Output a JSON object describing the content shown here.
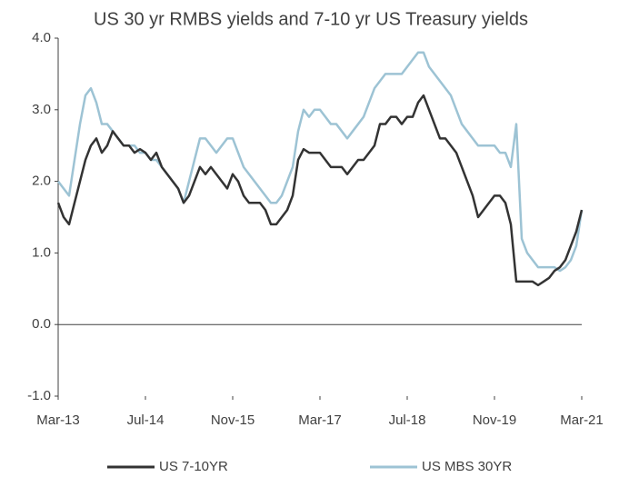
{
  "chart_data": {
    "type": "line",
    "title": "US 30 yr RMBS yields and 7-10 yr US Treasury yields",
    "x": [
      "2013-03",
      "2013-04",
      "2013-05",
      "2013-06",
      "2013-07",
      "2013-08",
      "2013-09",
      "2013-10",
      "2013-11",
      "2013-12",
      "2014-01",
      "2014-02",
      "2014-03",
      "2014-04",
      "2014-05",
      "2014-06",
      "2014-07",
      "2014-08",
      "2014-09",
      "2014-10",
      "2014-11",
      "2014-12",
      "2015-01",
      "2015-02",
      "2015-03",
      "2015-04",
      "2015-05",
      "2015-06",
      "2015-07",
      "2015-08",
      "2015-09",
      "2015-10",
      "2015-11",
      "2015-12",
      "2016-01",
      "2016-02",
      "2016-03",
      "2016-04",
      "2016-05",
      "2016-06",
      "2016-07",
      "2016-08",
      "2016-09",
      "2016-10",
      "2016-11",
      "2016-12",
      "2017-01",
      "2017-02",
      "2017-03",
      "2017-04",
      "2017-05",
      "2017-06",
      "2017-07",
      "2017-08",
      "2017-09",
      "2017-10",
      "2017-11",
      "2017-12",
      "2018-01",
      "2018-02",
      "2018-03",
      "2018-04",
      "2018-05",
      "2018-06",
      "2018-07",
      "2018-08",
      "2018-09",
      "2018-10",
      "2018-11",
      "2018-12",
      "2019-01",
      "2019-02",
      "2019-03",
      "2019-04",
      "2019-05",
      "2019-06",
      "2019-07",
      "2019-08",
      "2019-09",
      "2019-10",
      "2019-11",
      "2019-12",
      "2020-01",
      "2020-02",
      "2020-03",
      "2020-04",
      "2020-05",
      "2020-06",
      "2020-07",
      "2020-08",
      "2020-09",
      "2020-10",
      "2020-11",
      "2020-12",
      "2021-01",
      "2021-02",
      "2021-03"
    ],
    "series": [
      {
        "name": "US 7-10YR",
        "color": "#333333",
        "values": [
          1.7,
          1.5,
          1.4,
          1.7,
          2.0,
          2.3,
          2.5,
          2.6,
          2.4,
          2.5,
          2.7,
          2.6,
          2.5,
          2.5,
          2.4,
          2.45,
          2.4,
          2.3,
          2.4,
          2.2,
          2.1,
          2.0,
          1.9,
          1.7,
          1.8,
          2.0,
          2.2,
          2.1,
          2.2,
          2.1,
          2.0,
          1.9,
          2.1,
          2.0,
          1.8,
          1.7,
          1.7,
          1.7,
          1.6,
          1.4,
          1.4,
          1.5,
          1.6,
          1.8,
          2.3,
          2.45,
          2.4,
          2.4,
          2.4,
          2.3,
          2.2,
          2.2,
          2.2,
          2.1,
          2.2,
          2.3,
          2.3,
          2.4,
          2.5,
          2.8,
          2.8,
          2.9,
          2.9,
          2.8,
          2.9,
          2.9,
          3.1,
          3.2,
          3.0,
          2.8,
          2.6,
          2.6,
          2.5,
          2.4,
          2.2,
          2.0,
          1.8,
          1.5,
          1.6,
          1.7,
          1.8,
          1.8,
          1.7,
          1.4,
          0.6,
          0.6,
          0.6,
          0.6,
          0.55,
          0.6,
          0.65,
          0.75,
          0.8,
          0.9,
          1.1,
          1.3,
          1.6
        ]
      },
      {
        "name": "US MBS 30YR",
        "color": "#9dc3d4",
        "values": [
          2.0,
          1.9,
          1.8,
          2.3,
          2.8,
          3.2,
          3.3,
          3.1,
          2.8,
          2.8,
          2.7,
          2.6,
          2.5,
          2.5,
          2.5,
          2.4,
          2.4,
          2.3,
          2.3,
          2.2,
          2.1,
          2.0,
          1.9,
          1.7,
          2.0,
          2.3,
          2.6,
          2.6,
          2.5,
          2.4,
          2.5,
          2.6,
          2.6,
          2.4,
          2.2,
          2.1,
          2.0,
          1.9,
          1.8,
          1.7,
          1.7,
          1.8,
          2.0,
          2.2,
          2.7,
          3.0,
          2.9,
          3.0,
          3.0,
          2.9,
          2.8,
          2.8,
          2.7,
          2.6,
          2.7,
          2.8,
          2.9,
          3.1,
          3.3,
          3.4,
          3.5,
          3.5,
          3.5,
          3.5,
          3.6,
          3.7,
          3.8,
          3.8,
          3.6,
          3.5,
          3.4,
          3.3,
          3.2,
          3.0,
          2.8,
          2.7,
          2.6,
          2.5,
          2.5,
          2.5,
          2.5,
          2.4,
          2.4,
          2.2,
          2.8,
          1.2,
          1.0,
          0.9,
          0.8,
          0.8,
          0.8,
          0.8,
          0.75,
          0.8,
          0.9,
          1.1,
          1.6
        ]
      }
    ],
    "xlim": [
      "2013-03",
      "2021-03"
    ],
    "xticks": [
      {
        "value": "2013-03",
        "label": "Mar-13"
      },
      {
        "value": "2014-07",
        "label": "Jul-14"
      },
      {
        "value": "2015-11",
        "label": "Nov-15"
      },
      {
        "value": "2017-03",
        "label": "Mar-17"
      },
      {
        "value": "2018-07",
        "label": "Jul-18"
      },
      {
        "value": "2019-11",
        "label": "Nov-19"
      },
      {
        "value": "2021-03",
        "label": "Mar-21"
      }
    ],
    "ylim": [
      -1,
      4
    ],
    "yticks": [
      {
        "value": -1,
        "label": "-1.0"
      },
      {
        "value": 0,
        "label": "0.0"
      },
      {
        "value": 1,
        "label": "1.0"
      },
      {
        "value": 2,
        "label": "2.0"
      },
      {
        "value": 3,
        "label": "3.0"
      },
      {
        "value": 4,
        "label": "4.0"
      }
    ],
    "legend": "bottom"
  }
}
